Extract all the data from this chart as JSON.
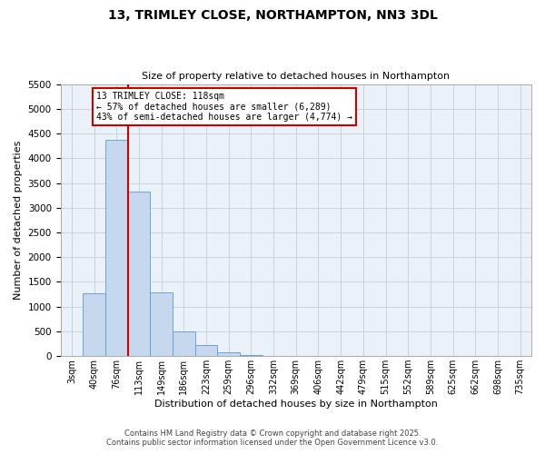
{
  "title": "13, TRIMLEY CLOSE, NORTHAMPTON, NN3 3DL",
  "subtitle": "Size of property relative to detached houses in Northampton",
  "xlabel": "Distribution of detached houses by size in Northampton",
  "ylabel": "Number of detached properties",
  "bar_labels": [
    "3sqm",
    "40sqm",
    "76sqm",
    "113sqm",
    "149sqm",
    "186sqm",
    "223sqm",
    "259sqm",
    "296sqm",
    "332sqm",
    "369sqm",
    "406sqm",
    "442sqm",
    "479sqm",
    "515sqm",
    "552sqm",
    "589sqm",
    "625sqm",
    "662sqm",
    "698sqm",
    "735sqm"
  ],
  "bar_values": [
    0,
    1270,
    4380,
    3320,
    1280,
    500,
    230,
    75,
    20,
    5,
    2,
    1,
    0,
    0,
    0,
    0,
    0,
    0,
    0,
    0,
    0
  ],
  "bar_color": "#c5d8ed",
  "bar_edge_color": "#5b9bd5",
  "vline_color": "#cc0000",
  "annotation_title": "13 TRIMLEY CLOSE: 118sqm",
  "annotation_line2": "← 57% of detached houses are smaller (6,289)",
  "annotation_line3": "43% of semi-detached houses are larger (4,774) →",
  "annotation_box_color": "#cc0000",
  "ylim": [
    0,
    5500
  ],
  "yticks": [
    0,
    500,
    1000,
    1500,
    2000,
    2500,
    3000,
    3500,
    4000,
    4500,
    5000,
    5500
  ],
  "footer1": "Contains HM Land Registry data © Crown copyright and database right 2025.",
  "footer2": "Contains public sector information licensed under the Open Government Licence v3.0.",
  "background_color": "#ffffff",
  "plot_bg_color": "#eaf1f8",
  "grid_color": "#c5d4e0"
}
